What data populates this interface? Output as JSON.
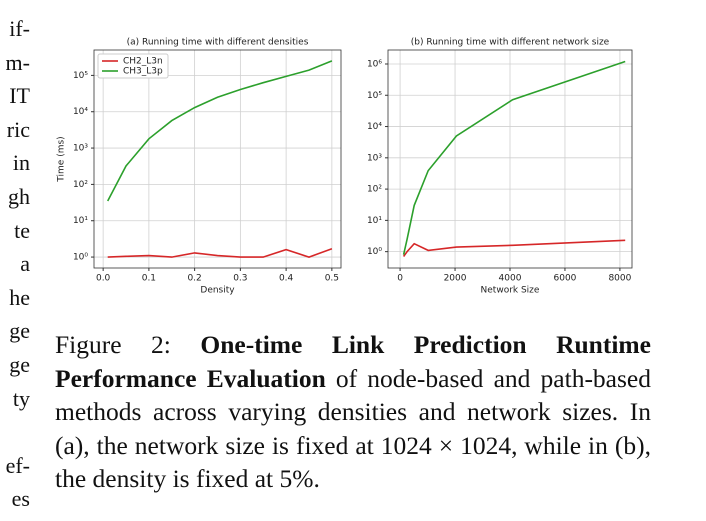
{
  "left_column": [
    "if-",
    "m-",
    "IT",
    "ric",
    "in",
    "gh",
    "te",
    "a",
    "he",
    "ge",
    "ge",
    "ty",
    "ef-",
    "es"
  ],
  "chart_data": [
    {
      "type": "line",
      "title": "(a) Running time with different densities",
      "xlabel": "Density",
      "ylabel": "Time (ms)",
      "x": [
        0.01,
        0.05,
        0.1,
        0.15,
        0.2,
        0.25,
        0.3,
        0.35,
        0.4,
        0.45,
        0.5
      ],
      "series": [
        {
          "name": "CH2_L3n",
          "color": "#d62728",
          "values": [
            1.0,
            1.05,
            1.1,
            1.0,
            1.3,
            1.1,
            1.0,
            1.0,
            1.6,
            1.0,
            1.7
          ]
        },
        {
          "name": "CH3_L3p",
          "color": "#2ca02c",
          "values": [
            35,
            320,
            1800,
            5700,
            13000,
            25000,
            41000,
            63000,
            94000,
            140000,
            250000
          ]
        }
      ],
      "xlim": [
        -0.02,
        0.52
      ],
      "xticks": [
        {
          "value": 0,
          "label": "0.0"
        },
        0.1,
        0.2,
        0.3,
        0.4,
        0.5
      ],
      "ylim": [
        0.5,
        500000
      ],
      "y_scale": "log",
      "yticks": [
        {
          "value": 1,
          "label": "10⁰"
        },
        {
          "value": 10,
          "label": "10¹"
        },
        {
          "value": 100,
          "label": "10²"
        },
        {
          "value": 1000,
          "label": "10³"
        },
        {
          "value": 10000,
          "label": "10⁴"
        },
        {
          "value": 100000,
          "label": "10⁵"
        }
      ],
      "grid": true,
      "legend": "upper left"
    },
    {
      "type": "line",
      "title": "(b) Running time with different network size",
      "xlabel": "Network Size",
      "x": [
        128,
        256,
        512,
        1024,
        2048,
        4096,
        8192
      ],
      "series": [
        {
          "color": "#d62728",
          "values": [
            0.7,
            1.0,
            1.8,
            1.1,
            1.4,
            1.6,
            2.3
          ]
        },
        {
          "color": "#2ca02c",
          "values": [
            0.8,
            2.5,
            30,
            390,
            5000,
            72000,
            1200000
          ]
        }
      ],
      "xlim": [
        -440,
        8440
      ],
      "xticks": [
        0,
        2000,
        4000,
        6000,
        8000
      ],
      "ylim": [
        0.3,
        2800000
      ],
      "y_scale": "log",
      "yticks": [
        {
          "value": 1,
          "label": "10⁰"
        },
        {
          "value": 10,
          "label": "10¹"
        },
        {
          "value": 100,
          "label": "10²"
        },
        {
          "value": 1000,
          "label": "10³"
        },
        {
          "value": 10000,
          "label": "10⁴"
        },
        {
          "value": 100000,
          "label": "10⁵"
        },
        {
          "value": 1000000,
          "label": "10⁶"
        }
      ],
      "grid": true
    }
  ],
  "caption": {
    "label": "Figure 2:",
    "bold": "One-time Link Prediction Runtime Performance Evaluation",
    "text": "of node-based and path-based methods across varying densities and network sizes. In (a), the network size is fixed at 1024 × 1024, while in (b), the density is fixed at 5%."
  }
}
